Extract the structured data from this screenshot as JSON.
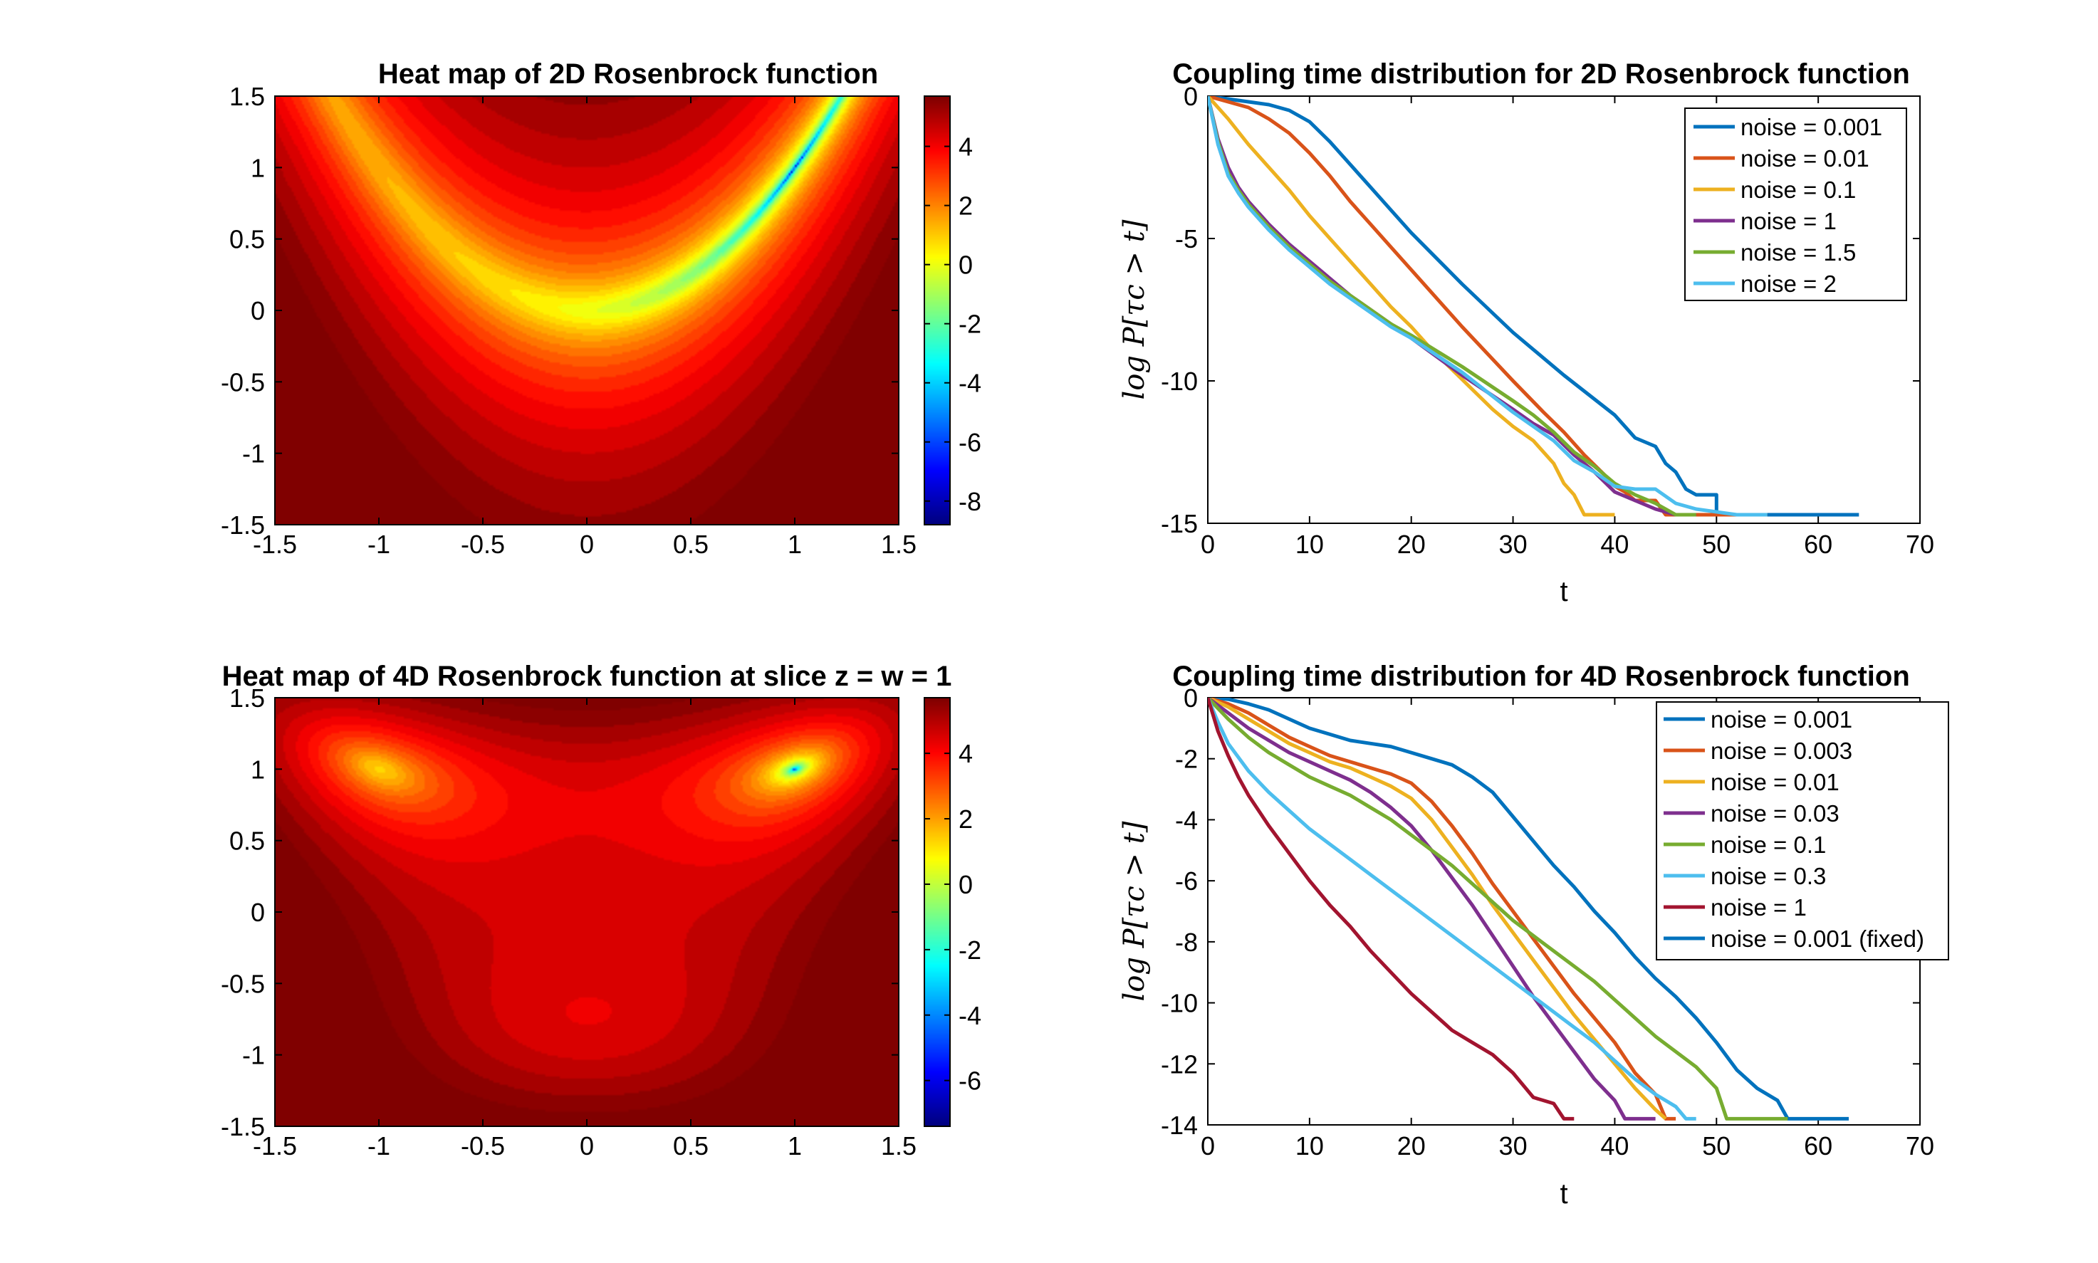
{
  "chart_data": [
    {
      "type": "heatmap",
      "title": "Heat map of 2D Rosenbrock function",
      "function": "log of 2D Rosenbrock function f(x,y) = (1 - x)^2 + 100 (y - x^2)^2",
      "xlim": [
        -1.5,
        1.5
      ],
      "ylim": [
        -1.5,
        1.5
      ],
      "xticks": [
        "-1.5",
        "-1",
        "-0.5",
        "0",
        "0.5",
        "1",
        "1.5"
      ],
      "yticks": [
        "1.5",
        "1",
        "0.5",
        "0",
        "-0.5",
        "-1",
        "-1.5"
      ],
      "colorbar": {
        "range": [
          -8.8,
          5.7
        ],
        "ticks": [
          "4",
          "2",
          "0",
          "-2",
          "-4",
          "-6",
          "-8"
        ],
        "colormap": "jet"
      }
    },
    {
      "type": "line",
      "title": "Coupling time distribution for 2D Rosenbrock function",
      "xlabel": "t",
      "ylabel": "log P[τc > t]",
      "xlim": [
        0,
        70
      ],
      "ylim": [
        -15,
        0
      ],
      "xticks": [
        "0",
        "10",
        "20",
        "30",
        "40",
        "50",
        "60",
        "70"
      ],
      "yticks": [
        "0",
        "-5",
        "-10",
        "-15"
      ],
      "legend_position": "top-right",
      "series": [
        {
          "name": "noise = 0.001",
          "color": "#0072BD",
          "x": [
            0,
            2,
            4,
            6,
            8,
            10,
            12,
            14,
            16,
            18,
            20,
            25,
            30,
            35,
            40,
            42,
            44,
            45,
            46,
            47,
            48,
            49,
            50,
            50,
            55,
            60,
            64
          ],
          "y": [
            0,
            -0.1,
            -0.2,
            -0.3,
            -0.5,
            -0.9,
            -1.6,
            -2.4,
            -3.2,
            -4.0,
            -4.8,
            -6.6,
            -8.3,
            -9.8,
            -11.2,
            -12.0,
            -12.3,
            -12.9,
            -13.2,
            -13.8,
            -14.0,
            -14.0,
            -14.0,
            -14.7,
            -14.7,
            -14.7,
            -14.7
          ]
        },
        {
          "name": "noise = 0.01",
          "color": "#D95319",
          "x": [
            0,
            2,
            4,
            6,
            8,
            10,
            12,
            14,
            16,
            18,
            20,
            25,
            30,
            33,
            35,
            37,
            39,
            40,
            41,
            42,
            43,
            44,
            45,
            50,
            55
          ],
          "y": [
            0,
            -0.2,
            -0.4,
            -0.8,
            -1.3,
            -2.0,
            -2.8,
            -3.7,
            -4.5,
            -5.3,
            -6.1,
            -8.1,
            -10.0,
            -11.1,
            -11.8,
            -12.6,
            -13.3,
            -13.7,
            -13.9,
            -14.2,
            -14.2,
            -14.2,
            -14.7,
            -14.7,
            -14.7
          ]
        },
        {
          "name": "noise = 0.1",
          "color": "#EDB120",
          "x": [
            0,
            2,
            4,
            6,
            8,
            10,
            12,
            14,
            16,
            18,
            20,
            22,
            24,
            26,
            28,
            30,
            32,
            34,
            35,
            36,
            37,
            38,
            39,
            40
          ],
          "y": [
            0,
            -0.8,
            -1.7,
            -2.5,
            -3.3,
            -4.2,
            -5.0,
            -5.8,
            -6.6,
            -7.4,
            -8.1,
            -8.9,
            -9.6,
            -10.3,
            -11.0,
            -11.6,
            -12.1,
            -12.9,
            -13.6,
            -14.0,
            -14.7,
            -14.7,
            -14.7,
            -14.7
          ]
        },
        {
          "name": "noise = 1",
          "color": "#7E2F8E",
          "x": [
            0,
            1,
            2,
            3,
            4,
            6,
            8,
            10,
            12,
            14,
            16,
            18,
            20,
            25,
            30,
            32,
            34,
            36,
            38,
            40,
            42,
            44,
            46,
            48
          ],
          "y": [
            0,
            -1.5,
            -2.5,
            -3.2,
            -3.7,
            -4.5,
            -5.2,
            -5.8,
            -6.4,
            -7.0,
            -7.5,
            -8.0,
            -8.5,
            -9.8,
            -11.0,
            -11.5,
            -11.9,
            -12.6,
            -13.2,
            -13.9,
            -14.2,
            -14.5,
            -14.7,
            -14.7
          ]
        },
        {
          "name": "noise = 1.5",
          "color": "#77AC30",
          "x": [
            0,
            1,
            2,
            3,
            4,
            6,
            8,
            10,
            12,
            14,
            16,
            18,
            20,
            25,
            30,
            32,
            34,
            36,
            38,
            40,
            42,
            44,
            46,
            48
          ],
          "y": [
            0,
            -1.6,
            -2.7,
            -3.3,
            -3.8,
            -4.6,
            -5.3,
            -5.9,
            -6.5,
            -7.0,
            -7.5,
            -8.0,
            -8.4,
            -9.5,
            -10.7,
            -11.2,
            -11.8,
            -12.5,
            -13.0,
            -13.6,
            -14.0,
            -14.3,
            -14.7,
            -14.7
          ]
        },
        {
          "name": "noise = 2",
          "color": "#4DBEEE",
          "x": [
            0,
            1,
            2,
            3,
            4,
            6,
            8,
            10,
            12,
            14,
            16,
            18,
            20,
            25,
            30,
            32,
            34,
            36,
            38,
            40,
            42,
            44,
            46,
            48,
            52,
            55
          ],
          "y": [
            0,
            -1.7,
            -2.8,
            -3.4,
            -3.9,
            -4.7,
            -5.4,
            -6.0,
            -6.6,
            -7.1,
            -7.6,
            -8.1,
            -8.5,
            -9.7,
            -11.1,
            -11.6,
            -12.1,
            -12.8,
            -13.2,
            -13.7,
            -13.8,
            -13.8,
            -14.3,
            -14.5,
            -14.7,
            -14.7
          ]
        }
      ]
    },
    {
      "type": "heatmap",
      "title": "Heat map of 4D Rosenbrock function at slice z = w = 1",
      "function": "log of 4D Rosenbrock function evaluated on the slice z = w = 1",
      "xlim": [
        -1.5,
        1.5
      ],
      "ylim": [
        -1.5,
        1.5
      ],
      "xticks": [
        "-1.5",
        "-1",
        "-0.5",
        "0",
        "0.5",
        "1",
        "1.5"
      ],
      "yticks": [
        "1.5",
        "1",
        "0.5",
        "0",
        "-0.5",
        "-1",
        "-1.5"
      ],
      "colorbar": {
        "range": [
          -7.4,
          5.7
        ],
        "ticks": [
          "4",
          "2",
          "0",
          "-2",
          "-4",
          "-6"
        ],
        "colormap": "jet"
      }
    },
    {
      "type": "line",
      "title": "Coupling time distribution for 4D Rosenbrock function",
      "xlabel": "t",
      "ylabel": "log P[τc > t]",
      "xlim": [
        0,
        70
      ],
      "ylim": [
        -14,
        0
      ],
      "xticks": [
        "0",
        "10",
        "20",
        "30",
        "40",
        "50",
        "60",
        "70"
      ],
      "yticks": [
        "0",
        "-2",
        "-4",
        "-6",
        "-8",
        "-10",
        "-12",
        "-14"
      ],
      "legend_position": "top-right",
      "series": [
        {
          "name": "noise = 0.001",
          "color": "#0072BD",
          "x": [
            0,
            2,
            4,
            6,
            8,
            10,
            12,
            14,
            16,
            18,
            20,
            22,
            24,
            26,
            28,
            30,
            32,
            34,
            36,
            38,
            40,
            42,
            44,
            46,
            48,
            50,
            52,
            54,
            56,
            57,
            60,
            63
          ],
          "y": [
            0,
            -0.05,
            -0.2,
            -0.4,
            -0.7,
            -1.0,
            -1.2,
            -1.4,
            -1.5,
            -1.6,
            -1.8,
            -2.0,
            -2.2,
            -2.6,
            -3.1,
            -3.9,
            -4.7,
            -5.5,
            -6.2,
            -7.0,
            -7.7,
            -8.5,
            -9.2,
            -9.8,
            -10.5,
            -11.3,
            -12.2,
            -12.8,
            -13.2,
            -13.8,
            -13.8,
            -13.8
          ]
        },
        {
          "name": "noise = 0.003",
          "color": "#D95319",
          "x": [
            0,
            2,
            4,
            6,
            8,
            10,
            12,
            14,
            16,
            18,
            20,
            22,
            24,
            26,
            28,
            30,
            32,
            34,
            36,
            38,
            40,
            42,
            44,
            45,
            46
          ],
          "y": [
            0,
            -0.2,
            -0.5,
            -0.9,
            -1.3,
            -1.6,
            -1.9,
            -2.1,
            -2.3,
            -2.5,
            -2.8,
            -3.4,
            -4.2,
            -5.1,
            -6.1,
            -7.0,
            -7.9,
            -8.8,
            -9.7,
            -10.5,
            -11.3,
            -12.3,
            -13.0,
            -13.8,
            -13.8
          ]
        },
        {
          "name": "noise = 0.01",
          "color": "#EDB120",
          "x": [
            0,
            2,
            4,
            6,
            8,
            10,
            12,
            14,
            16,
            18,
            20,
            22,
            24,
            26,
            28,
            30,
            32,
            34,
            36,
            38,
            40,
            42,
            44,
            45
          ],
          "y": [
            0,
            -0.3,
            -0.7,
            -1.1,
            -1.5,
            -1.8,
            -2.1,
            -2.3,
            -2.6,
            -2.9,
            -3.3,
            -4.0,
            -4.9,
            -5.8,
            -6.8,
            -7.7,
            -8.6,
            -9.5,
            -10.4,
            -11.2,
            -12.0,
            -12.8,
            -13.5,
            -13.8
          ]
        },
        {
          "name": "noise = 0.03",
          "color": "#7E2F8E",
          "x": [
            0,
            2,
            4,
            6,
            8,
            10,
            12,
            14,
            16,
            18,
            20,
            22,
            24,
            26,
            28,
            30,
            32,
            34,
            36,
            38,
            40,
            41,
            42,
            44
          ],
          "y": [
            0,
            -0.5,
            -1.0,
            -1.4,
            -1.8,
            -2.1,
            -2.4,
            -2.7,
            -3.1,
            -3.6,
            -4.2,
            -5.0,
            -5.9,
            -6.8,
            -7.8,
            -8.8,
            -9.8,
            -10.7,
            -11.6,
            -12.5,
            -13.2,
            -13.8,
            -13.8,
            -13.8
          ]
        },
        {
          "name": "noise = 0.1",
          "color": "#77AC30",
          "x": [
            0,
            2,
            4,
            6,
            8,
            10,
            12,
            14,
            16,
            18,
            20,
            22,
            24,
            26,
            28,
            30,
            32,
            34,
            36,
            38,
            40,
            42,
            44,
            46,
            48,
            50,
            51,
            54,
            57
          ],
          "y": [
            0,
            -0.7,
            -1.3,
            -1.8,
            -2.2,
            -2.6,
            -2.9,
            -3.2,
            -3.6,
            -4.0,
            -4.5,
            -5.0,
            -5.5,
            -6.1,
            -6.7,
            -7.3,
            -7.8,
            -8.3,
            -8.8,
            -9.3,
            -9.9,
            -10.5,
            -11.1,
            -11.6,
            -12.1,
            -12.8,
            -13.8,
            -13.8,
            -13.8
          ]
        },
        {
          "name": "noise = 0.3",
          "color": "#4DBEEE",
          "x": [
            0,
            1,
            2,
            4,
            6,
            8,
            10,
            12,
            14,
            16,
            18,
            20,
            22,
            24,
            26,
            28,
            30,
            32,
            34,
            36,
            38,
            40,
            42,
            44,
            46,
            47,
            48
          ],
          "y": [
            0,
            -0.8,
            -1.5,
            -2.4,
            -3.1,
            -3.7,
            -4.3,
            -4.8,
            -5.3,
            -5.8,
            -6.3,
            -6.8,
            -7.3,
            -7.8,
            -8.3,
            -8.8,
            -9.3,
            -9.8,
            -10.3,
            -10.8,
            -11.3,
            -11.9,
            -12.5,
            -13.0,
            -13.4,
            -13.8,
            -13.8
          ]
        },
        {
          "name": "noise = 1",
          "color": "#A2142F",
          "x": [
            0,
            1,
            2,
            3,
            4,
            6,
            8,
            10,
            12,
            14,
            16,
            18,
            20,
            22,
            24,
            26,
            28,
            30,
            32,
            34,
            35,
            36
          ],
          "y": [
            0,
            -1.1,
            -1.9,
            -2.6,
            -3.2,
            -4.2,
            -5.1,
            -6.0,
            -6.8,
            -7.5,
            -8.3,
            -9.0,
            -9.7,
            -10.3,
            -10.9,
            -11.3,
            -11.7,
            -12.3,
            -13.1,
            -13.3,
            -13.8,
            -13.8
          ]
        }
      ]
    }
  ]
}
